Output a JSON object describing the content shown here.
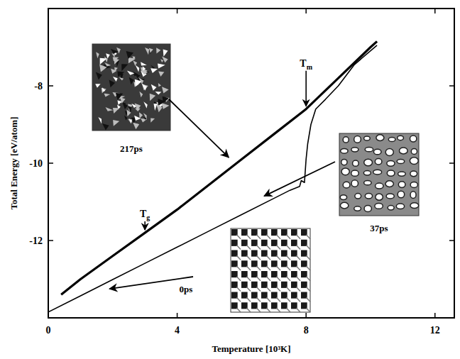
{
  "chart_data": {
    "type": "line",
    "x_label": "Temperature [10³K]",
    "y_label": "Total Energy [eV/atom]",
    "xlim": [
      0,
      12.6
    ],
    "ylim": [
      -14,
      -6
    ],
    "xticks": [
      0,
      4,
      8,
      12
    ],
    "yticks": [
      -12,
      -10,
      -8
    ],
    "series": [
      {
        "color": "#000000",
        "x": [
          0,
          1,
          2,
          3,
          4,
          5,
          6,
          7,
          7.5,
          7.8,
          7.85,
          7.95,
          8.0,
          8.05,
          8.15,
          8.3,
          8.6,
          9.0,
          9.5,
          10.2
        ],
        "values": [
          -13.85,
          -13.43,
          -13.01,
          -12.59,
          -12.17,
          -11.75,
          -11.33,
          -10.91,
          -10.7,
          -10.6,
          -10.45,
          -10.5,
          -9.9,
          -9.5,
          -9.0,
          -8.6,
          -8.35,
          -8.0,
          -7.45,
          -6.95
        ]
      },
      {
        "color": "#000000",
        "x": [
          0.4,
          1,
          2,
          3,
          4,
          5,
          6,
          7,
          8,
          9,
          10,
          10.2
        ],
        "values": [
          -13.4,
          -13.0,
          -12.4,
          -11.8,
          -11.2,
          -10.55,
          -9.9,
          -9.25,
          -8.6,
          -7.8,
          -7.0,
          -6.85
        ]
      }
    ],
    "annotations": [
      {
        "text": "Tg",
        "x": 3.0,
        "y": -11.8
      },
      {
        "text": "Tm",
        "x": 8.0,
        "y": -8.6
      }
    ],
    "insets": [
      {
        "label": "217ps",
        "x": 5.6,
        "y": -9.85
      },
      {
        "label": "37ps",
        "x": 6.7,
        "y": -10.85
      },
      {
        "label": "0ps",
        "x": 1.9,
        "y": -13.25
      }
    ]
  }
}
